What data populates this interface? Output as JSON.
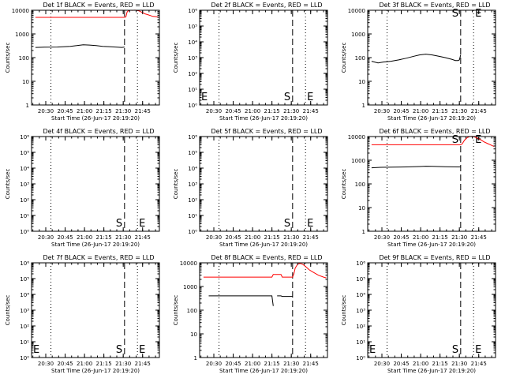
{
  "chart_data": [
    {
      "type": "line",
      "title": "Det 1f BLACK = Events, RED = LLD",
      "ylabel": "Counts/sec",
      "xlabel": "Start Time (26-Jun-17 20:19:20)",
      "log_y": true,
      "ylim": [
        1,
        10000
      ],
      "y_ticklabels": [
        "1",
        "10",
        "100",
        "1000",
        "10000"
      ],
      "xlim_minutes": [
        0,
        99
      ],
      "x_ticks_minutes": [
        11,
        26,
        41,
        56,
        71,
        86
      ],
      "x_ticklabels": [
        "20:30",
        "20:45",
        "21:00",
        "21:15",
        "21:30",
        "21:45"
      ],
      "markers": [
        {
          "x_minutes": 15,
          "style": "dotted",
          "label": ""
        },
        {
          "x_minutes": 72,
          "style": "dashed",
          "label": ""
        },
        {
          "x_minutes": 82,
          "style": "dotted",
          "label": ""
        },
        {
          "x_minutes": 99,
          "style": "dashdot",
          "label": ""
        }
      ],
      "series": [
        {
          "name": "LLD",
          "color": "#ff0000",
          "points": [
            [
              3,
              5000
            ],
            [
              72,
              5000
            ],
            [
              73,
              5200
            ],
            [
              74,
              8500
            ],
            [
              75,
              9500
            ],
            [
              76,
              10000
            ],
            [
              77,
              10000
            ],
            [
              78,
              9900
            ],
            [
              79,
              10000
            ],
            [
              80,
              10100
            ],
            [
              81,
              10000
            ],
            [
              82,
              9800
            ],
            [
              83,
              9500
            ],
            [
              84,
              9000
            ],
            [
              86,
              8000
            ],
            [
              88,
              7000
            ],
            [
              90,
              6500
            ],
            [
              92,
              6000
            ],
            [
              94,
              5500
            ],
            [
              96,
              5400
            ],
            [
              98,
              5200
            ]
          ]
        },
        {
          "name": "Events",
          "color": "#000000",
          "points": [
            [
              3,
              270
            ],
            [
              10,
              275
            ],
            [
              20,
              280
            ],
            [
              30,
              300
            ],
            [
              35,
              320
            ],
            [
              40,
              350
            ],
            [
              45,
              340
            ],
            [
              50,
              320
            ],
            [
              55,
              300
            ],
            [
              60,
              290
            ],
            [
              65,
              280
            ],
            [
              70,
              270
            ],
            [
              72,
              280
            ]
          ]
        }
      ]
    },
    {
      "type": "line",
      "title": "Det 2f BLACK = Events, RED = LLD",
      "ylabel": "Counts/sec",
      "xlabel": "Start Time (26-Jun-17 20:19:20)",
      "log_y": true,
      "ylim": [
        1,
        1000000
      ],
      "y_ticklabels": [
        "10⁰",
        "10¹",
        "10²",
        "10³",
        "10⁴",
        "10⁵",
        "10⁶"
      ],
      "xlim_minutes": [
        0,
        99
      ],
      "x_ticks_minutes": [
        11,
        26,
        41,
        56,
        71,
        86
      ],
      "x_ticklabels": [
        "20:30",
        "20:45",
        "21:00",
        "21:15",
        "21:30",
        "21:45"
      ],
      "markers": [
        {
          "x_minutes": 0,
          "style": "dashdot",
          "label": "E"
        },
        {
          "x_minutes": 15,
          "style": "dotted",
          "label": ""
        },
        {
          "x_minutes": 72,
          "style": "dashed",
          "label": "S"
        },
        {
          "x_minutes": 82,
          "style": "dotted",
          "label": "E"
        },
        {
          "x_minutes": 99,
          "style": "dashdot",
          "label": ""
        }
      ],
      "series": []
    },
    {
      "type": "line",
      "title": "Det 3f BLACK = Events, RED = LLD",
      "ylabel": "Counts/sec",
      "xlabel": "Start Time (26-Jun-17 20:19:20)",
      "log_y": true,
      "ylim": [
        1,
        10000
      ],
      "y_ticklabels": [
        "1",
        "10",
        "100",
        "1000",
        "10000"
      ],
      "xlim_minutes": [
        0,
        99
      ],
      "x_ticks_minutes": [
        11,
        26,
        41,
        56,
        71,
        86
      ],
      "x_ticklabels": [
        "20:30",
        "20:45",
        "21:00",
        "21:15",
        "21:30",
        "21:45"
      ],
      "markers": [
        {
          "x_minutes": 15,
          "style": "dotted",
          "label": ""
        },
        {
          "x_minutes": 72,
          "style": "dashed",
          "label": "S"
        },
        {
          "x_minutes": 82,
          "style": "dotted",
          "label": "E"
        },
        {
          "x_minutes": 99,
          "style": "dashdot",
          "label": ""
        }
      ],
      "series": [
        {
          "name": "Events",
          "color": "#000000",
          "points": [
            [
              3,
              70
            ],
            [
              8,
              60
            ],
            [
              12,
              65
            ],
            [
              18,
              70
            ],
            [
              24,
              80
            ],
            [
              30,
              95
            ],
            [
              36,
              115
            ],
            [
              40,
              130
            ],
            [
              45,
              140
            ],
            [
              50,
              130
            ],
            [
              55,
              115
            ],
            [
              60,
              100
            ],
            [
              65,
              85
            ],
            [
              68,
              75
            ],
            [
              70,
              75
            ],
            [
              71,
              80
            ],
            [
              72,
              130
            ]
          ]
        }
      ]
    },
    {
      "type": "line",
      "title": "Det 4f BLACK = Events, RED = LLD",
      "ylabel": "Counts/sec",
      "xlabel": "Start Time (26-Jun-17 20:19:20)",
      "log_y": true,
      "ylim": [
        1,
        1000000
      ],
      "y_ticklabels": [
        "10⁰",
        "10¹",
        "10²",
        "10³",
        "10⁴",
        "10⁵",
        "10⁶"
      ],
      "xlim_minutes": [
        0,
        99
      ],
      "x_ticks_minutes": [
        11,
        26,
        41,
        56,
        71,
        86
      ],
      "x_ticklabels": [
        "20:30",
        "20:45",
        "21:00",
        "21:15",
        "21:30",
        "21:45"
      ],
      "markers": [
        {
          "x_minutes": 15,
          "style": "dotted",
          "label": ""
        },
        {
          "x_minutes": 72,
          "style": "dashed",
          "label": "S"
        },
        {
          "x_minutes": 82,
          "style": "dotted",
          "label": "E"
        },
        {
          "x_minutes": 99,
          "style": "dashdot",
          "label": ""
        }
      ],
      "series": []
    },
    {
      "type": "line",
      "title": "Det 5f BLACK = Events, RED = LLD",
      "ylabel": "Counts/sec",
      "xlabel": "Start Time (26-Jun-17 20:19:20)",
      "log_y": true,
      "ylim": [
        1,
        1000000
      ],
      "y_ticklabels": [
        "10⁰",
        "10¹",
        "10²",
        "10³",
        "10⁴",
        "10⁵",
        "10⁶"
      ],
      "xlim_minutes": [
        0,
        99
      ],
      "x_ticks_minutes": [
        11,
        26,
        41,
        56,
        71,
        86
      ],
      "x_ticklabels": [
        "20:30",
        "20:45",
        "21:00",
        "21:15",
        "21:30",
        "21:45"
      ],
      "markers": [
        {
          "x_minutes": 15,
          "style": "dotted",
          "label": ""
        },
        {
          "x_minutes": 72,
          "style": "dashed",
          "label": "S"
        },
        {
          "x_minutes": 82,
          "style": "dotted",
          "label": "E"
        },
        {
          "x_minutes": 99,
          "style": "dashdot",
          "label": ""
        }
      ],
      "series": []
    },
    {
      "type": "line",
      "title": "Det 6f BLACK = Events, RED = LLD",
      "ylabel": "Counts/sec",
      "xlabel": "Start Time (26-Jun-17 20:19:20)",
      "log_y": true,
      "ylim": [
        1,
        10000
      ],
      "y_ticklabels": [
        "1",
        "10",
        "100",
        "1000",
        "10000"
      ],
      "xlim_minutes": [
        0,
        99
      ],
      "x_ticks_minutes": [
        11,
        26,
        41,
        56,
        71,
        86
      ],
      "x_ticklabels": [
        "20:30",
        "20:45",
        "21:00",
        "21:15",
        "21:30",
        "21:45"
      ],
      "markers": [
        {
          "x_minutes": 15,
          "style": "dotted",
          "label": ""
        },
        {
          "x_minutes": 72,
          "style": "dashed",
          "label": "S"
        },
        {
          "x_minutes": 82,
          "style": "dotted",
          "label": "E"
        },
        {
          "x_minutes": 99,
          "style": "dashdot",
          "label": ""
        }
      ],
      "series": [
        {
          "name": "LLD",
          "color": "#ff0000",
          "points": [
            [
              3,
              4500
            ],
            [
              72,
              4500
            ],
            [
              73,
              4800
            ],
            [
              75,
              7000
            ],
            [
              77,
              9000
            ],
            [
              79,
              10000
            ],
            [
              81,
              10200
            ],
            [
              83,
              9500
            ],
            [
              85,
              8500
            ],
            [
              88,
              7000
            ],
            [
              90,
              6000
            ],
            [
              93,
              5000
            ],
            [
              95,
              4500
            ],
            [
              97,
              4000
            ],
            [
              98,
              3800
            ]
          ]
        },
        {
          "name": "Events",
          "color": "#000000",
          "points": [
            [
              3,
              480
            ],
            [
              10,
              500
            ],
            [
              20,
              510
            ],
            [
              30,
              520
            ],
            [
              40,
              540
            ],
            [
              45,
              560
            ],
            [
              50,
              550
            ],
            [
              60,
              530
            ],
            [
              70,
              520
            ],
            [
              72,
              520
            ]
          ]
        }
      ]
    },
    {
      "type": "line",
      "title": "Det 7f BLACK = Events, RED = LLD",
      "ylabel": "Counts/sec",
      "xlabel": "Start Time (26-Jun-17 20:19:20)",
      "log_y": true,
      "ylim": [
        1,
        1000000
      ],
      "y_ticklabels": [
        "10⁰",
        "10¹",
        "10²",
        "10³",
        "10⁴",
        "10⁵",
        "10⁶"
      ],
      "xlim_minutes": [
        0,
        99
      ],
      "x_ticks_minutes": [
        11,
        26,
        41,
        56,
        71,
        86
      ],
      "x_ticklabels": [
        "20:30",
        "20:45",
        "21:00",
        "21:15",
        "21:30",
        "21:45"
      ],
      "markers": [
        {
          "x_minutes": 0,
          "style": "dashdot",
          "label": "E"
        },
        {
          "x_minutes": 15,
          "style": "dotted",
          "label": ""
        },
        {
          "x_minutes": 72,
          "style": "dashed",
          "label": "S"
        },
        {
          "x_minutes": 82,
          "style": "dotted",
          "label": "E"
        },
        {
          "x_minutes": 99,
          "style": "dashdot",
          "label": ""
        }
      ],
      "series": []
    },
    {
      "type": "line",
      "title": "Det 8f BLACK = Events, RED = LLD",
      "ylabel": "Counts/sec",
      "xlabel": "Start Time (26-Jun-17 20:19:20)",
      "log_y": true,
      "ylim": [
        1,
        10000
      ],
      "y_ticklabels": [
        "1",
        "10",
        "100",
        "1000",
        "10000"
      ],
      "xlim_minutes": [
        0,
        99
      ],
      "x_ticks_minutes": [
        11,
        26,
        41,
        56,
        71,
        86
      ],
      "x_ticklabels": [
        "20:30",
        "20:45",
        "21:00",
        "21:15",
        "21:30",
        "21:45"
      ],
      "markers": [
        {
          "x_minutes": 15,
          "style": "dotted",
          "label": ""
        },
        {
          "x_minutes": 72,
          "style": "dashed",
          "label": ""
        },
        {
          "x_minutes": 82,
          "style": "dotted",
          "label": ""
        },
        {
          "x_minutes": 99,
          "style": "dashdot",
          "label": ""
        }
      ],
      "series": [
        {
          "name": "LLD",
          "color": "#ff0000",
          "points": [
            [
              3,
              2500
            ],
            [
              56,
              2500
            ],
            [
              57,
              3200
            ],
            [
              63,
              3200
            ],
            [
              64,
              2500
            ],
            [
              71,
              2500
            ],
            [
              72,
              2500
            ],
            [
              73,
              3500
            ],
            [
              74,
              6000
            ],
            [
              76,
              9000
            ],
            [
              78,
              9500
            ],
            [
              80,
              8500
            ],
            [
              82,
              7000
            ],
            [
              85,
              5000
            ],
            [
              88,
              4000
            ],
            [
              92,
              3000
            ],
            [
              96,
              2500
            ],
            [
              98,
              2300
            ]
          ]
        },
        {
          "name": "Events",
          "color": "#000000",
          "points": [
            [
              7,
              400
            ],
            [
              56,
              400
            ],
            [
              57,
              150
            ],
            [
              57,
              null
            ],
            [
              60,
              null
            ],
            [
              60,
              400
            ],
            [
              63,
              400
            ],
            [
              64,
              380
            ],
            [
              72,
              380
            ]
          ]
        }
      ]
    },
    {
      "type": "line",
      "title": "Det 9f BLACK = Events, RED = LLD",
      "ylabel": "Counts/sec",
      "xlabel": "Start Time (26-Jun-17 20:19:20)",
      "log_y": true,
      "ylim": [
        1,
        1000000
      ],
      "y_ticklabels": [
        "10⁰",
        "10¹",
        "10²",
        "10³",
        "10⁴",
        "10⁵",
        "10⁶"
      ],
      "xlim_minutes": [
        0,
        99
      ],
      "x_ticks_minutes": [
        11,
        26,
        41,
        56,
        71,
        86
      ],
      "x_ticklabels": [
        "20:30",
        "20:45",
        "21:00",
        "21:15",
        "21:30",
        "21:45"
      ],
      "markers": [
        {
          "x_minutes": 0,
          "style": "dashdot",
          "label": "E"
        },
        {
          "x_minutes": 15,
          "style": "dotted",
          "label": ""
        },
        {
          "x_minutes": 72,
          "style": "dashed",
          "label": "S"
        },
        {
          "x_minutes": 82,
          "style": "dotted",
          "label": "E"
        },
        {
          "x_minutes": 99,
          "style": "dashdot",
          "label": ""
        }
      ],
      "series": []
    }
  ]
}
